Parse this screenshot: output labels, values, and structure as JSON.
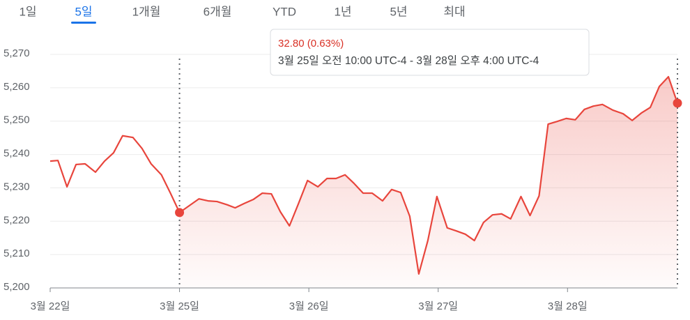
{
  "tabs": {
    "items": [
      "1일",
      "5일",
      "1개월",
      "6개월",
      "YTD",
      "1년",
      "5년",
      "최대"
    ],
    "selected": 1
  },
  "tooltip": {
    "change": "32.80 (0.63%)",
    "range": "3월 25일 오전 10:00 UTC-4 - 3월 28일 오후 4:00 UTC-4"
  },
  "chart_data": {
    "type": "line",
    "x": [
      0,
      0.06,
      0.13,
      0.2,
      0.27,
      0.35,
      0.42,
      0.49,
      0.56,
      0.64,
      0.71,
      0.78,
      0.86,
      0.93,
      1.0,
      1.15,
      1.22,
      1.29,
      1.37,
      1.43,
      1.5,
      1.57,
      1.64,
      1.71,
      1.78,
      1.85,
      1.92,
      1.99,
      2.07,
      2.14,
      2.21,
      2.28,
      2.35,
      2.42,
      2.49,
      2.57,
      2.64,
      2.71,
      2.78,
      2.85,
      2.92,
      2.99,
      3.07,
      3.14,
      3.21,
      3.28,
      3.35,
      3.42,
      3.49,
      3.56,
      3.64,
      3.71,
      3.78,
      3.85,
      3.92,
      3.99,
      4.06,
      4.13,
      4.2,
      4.27,
      4.35,
      4.43,
      4.5,
      4.57,
      4.64,
      4.71,
      4.78,
      4.85
    ],
    "series": [
      {
        "color": "#e8453c",
        "values": [
          5238.0,
          5238.2,
          5230.3,
          5237.0,
          5237.2,
          5234.7,
          5238.0,
          5240.5,
          5245.6,
          5245.1,
          5241.8,
          5237.2,
          5233.9,
          5228.4,
          5222.6,
          5226.7,
          5226.1,
          5225.9,
          5224.9,
          5224.0,
          5225.3,
          5226.5,
          5228.4,
          5228.2,
          5222.8,
          5218.6,
          5225.3,
          5232.2,
          5230.3,
          5232.8,
          5232.8,
          5233.9,
          5231.3,
          5228.4,
          5228.4,
          5226.1,
          5229.5,
          5228.6,
          5221.5,
          5204.2,
          5214.2,
          5227.4,
          5218.0,
          5217.1,
          5216.1,
          5214.2,
          5219.6,
          5221.9,
          5222.2,
          5220.7,
          5227.4,
          5221.7,
          5227.6,
          5249.1,
          5249.9,
          5250.8,
          5250.4,
          5253.5,
          5254.5,
          5255.0,
          5253.3,
          5252.2,
          5250.2,
          5252.4,
          5254.1,
          5260.4,
          5263.3,
          5255.4
        ]
      }
    ],
    "xlim": [
      0,
      4.85
    ],
    "xticks": [
      {
        "value": 0,
        "label": "3월 22일"
      },
      {
        "value": 1,
        "label": "3월 25일"
      },
      {
        "value": 2,
        "label": "3월 26일"
      },
      {
        "value": 3,
        "label": "3월 27일"
      },
      {
        "value": 4,
        "label": "3월 28일"
      }
    ],
    "ylim": [
      5200,
      5270
    ],
    "yticks": [
      {
        "value": 5200,
        "label": "5,200"
      },
      {
        "value": 5210,
        "label": "5,210"
      },
      {
        "value": 5220,
        "label": "5,220"
      },
      {
        "value": 5230,
        "label": "5,230"
      },
      {
        "value": 5240,
        "label": "5,240"
      },
      {
        "value": 5250,
        "label": "5,250"
      },
      {
        "value": 5260,
        "label": "5,260"
      },
      {
        "value": 5270,
        "label": "5,270"
      }
    ],
    "grid": true
  }
}
